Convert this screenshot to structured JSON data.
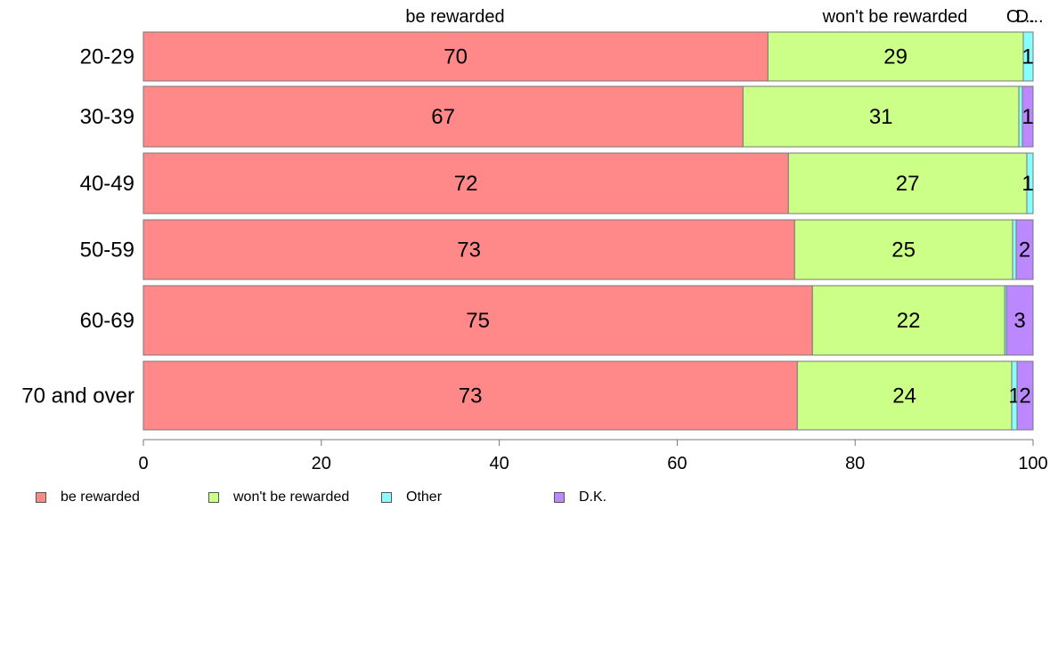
{
  "chart_data": {
    "type": "bar",
    "orientation": "horizontal",
    "stacked": true,
    "categories": [
      "20-29",
      "30-39",
      "40-49",
      "50-59",
      "60-69",
      "70 and over"
    ],
    "series": [
      {
        "name": "be rewarded",
        "color": "#ff8888",
        "values": [
          70.2,
          67.4,
          72.5,
          73.2,
          75.2,
          73.5
        ],
        "labels": [
          "70",
          "67",
          "72",
          "73",
          "75",
          "73"
        ]
      },
      {
        "name": "won't be rewarded",
        "color": "#ccff88",
        "values": [
          28.7,
          31.0,
          26.8,
          24.5,
          21.6,
          24.1
        ],
        "labels": [
          "29",
          "31",
          "27",
          "25",
          "22",
          "24"
        ]
      },
      {
        "name": "Other",
        "color": "#88ffff",
        "values": [
          1.1,
          0.4,
          0.7,
          0.4,
          0.2,
          0.6
        ],
        "labels": [
          "1",
          "",
          "1",
          "",
          "",
          "1"
        ]
      },
      {
        "name": "D.K.",
        "color": "#bb88ff",
        "values": [
          0.0,
          1.2,
          0.0,
          1.9,
          3.0,
          1.8
        ],
        "labels": [
          "",
          "1",
          "",
          "2",
          "3",
          "2"
        ]
      }
    ],
    "top_labels": [
      "be rewarded",
      "won't be rewarded",
      "O...",
      "D..."
    ],
    "xlim": [
      0,
      100
    ],
    "xticks": [
      "0",
      "20",
      "40",
      "60",
      "80",
      "100"
    ],
    "xlabel": "",
    "ylabel": "",
    "title": "",
    "grid": false,
    "legend_position": "bottom-left"
  }
}
